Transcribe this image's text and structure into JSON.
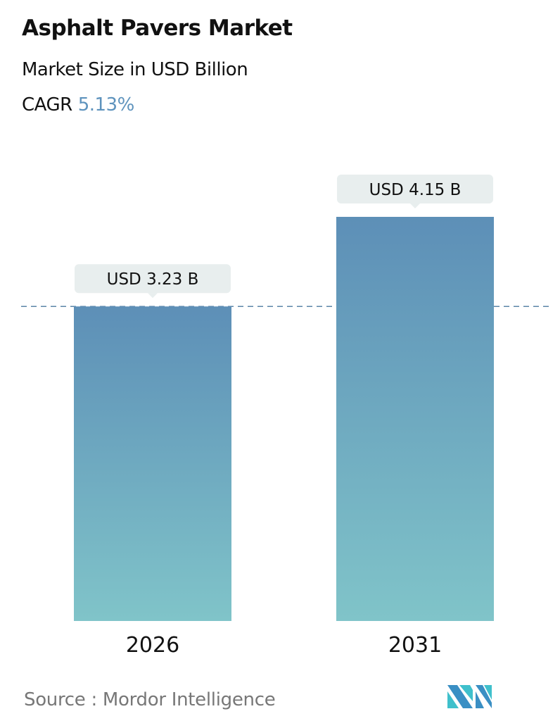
{
  "title": "Asphalt Pavers Market",
  "subtitle": "Market Size in USD Billion",
  "cagr_label": "CAGR",
  "cagr_value": "5.13%",
  "source": "Source :  Mordor Intelligence",
  "colors": {
    "bar_top": "#5d8fb7",
    "bar_bottom": "#80c4c9",
    "cagr": "#5e93bd",
    "label_bg": "#e8eeee",
    "dashed_line": "#5b85a8"
  },
  "chart_data": {
    "type": "bar",
    "categories": [
      "2026",
      "2031"
    ],
    "values": [
      3.23,
      4.15
    ],
    "data_labels": [
      "USD 3.23 B",
      "USD 4.15 B"
    ],
    "ylabel": "Market Size in USD Billion",
    "reference_line": 3.23,
    "grid": false
  }
}
